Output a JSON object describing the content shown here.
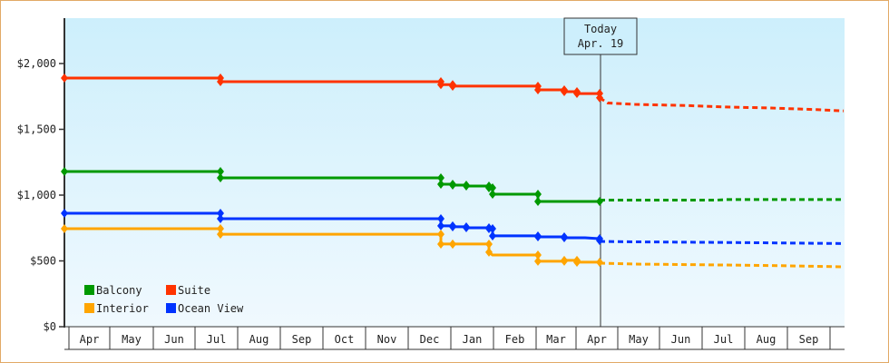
{
  "chart_data": {
    "type": "line",
    "title": "",
    "xlabel": "",
    "ylabel": "",
    "ylim": [
      0,
      2350
    ],
    "y_ticks": [
      {
        "label": "$0",
        "value": 0
      },
      {
        "label": "$500",
        "value": 500
      },
      {
        "label": "$1,000",
        "value": 1000
      },
      {
        "label": "$1,500",
        "value": 1500
      },
      {
        "label": "$2,000",
        "value": 2000
      }
    ],
    "x_categories": [
      "Apr",
      "May",
      "Jun",
      "Jul",
      "Aug",
      "Sep",
      "Oct",
      "Nov",
      "Dec",
      "Jan",
      "Feb",
      "Mar",
      "Apr",
      "May",
      "Jun",
      "Jul",
      "Aug",
      "Sep"
    ],
    "today_marker": {
      "line1": "Today",
      "line2": "Apr. 19"
    },
    "legend": [
      {
        "name": "Balcony",
        "color": "#009900"
      },
      {
        "name": "Suite",
        "color": "#ff3300"
      },
      {
        "name": "Interior",
        "color": "#ffa500"
      },
      {
        "name": "Ocean View",
        "color": "#0033ff"
      }
    ],
    "series": [
      {
        "name": "Suite",
        "color": "#ff3300",
        "history": [
          [
            71,
            1890
          ],
          [
            243,
            1890
          ],
          [
            243,
            1862
          ],
          [
            486,
            1862
          ],
          [
            486,
            1840
          ],
          [
            499,
            1840
          ],
          [
            499,
            1828
          ],
          [
            593,
            1828
          ],
          [
            593,
            1800
          ],
          [
            622,
            1800
          ],
          [
            622,
            1786
          ],
          [
            636,
            1786
          ],
          [
            636,
            1772
          ],
          [
            661,
            1772
          ],
          [
            661,
            1740
          ]
        ],
        "forecast": [
          [
            661,
            1740
          ],
          [
            670,
            1700
          ],
          [
            700,
            1690
          ],
          [
            760,
            1680
          ],
          [
            800,
            1670
          ],
          [
            850,
            1662
          ],
          [
            900,
            1650
          ],
          [
            930,
            1640
          ]
        ]
      },
      {
        "name": "Balcony",
        "color": "#009900",
        "history": [
          [
            71,
            1179
          ],
          [
            243,
            1179
          ],
          [
            243,
            1131
          ],
          [
            486,
            1131
          ],
          [
            486,
            1083
          ],
          [
            499,
            1083
          ],
          [
            499,
            1076
          ],
          [
            514,
            1076
          ],
          [
            514,
            1069
          ],
          [
            539,
            1069
          ],
          [
            539,
            1055
          ],
          [
            543,
            1055
          ],
          [
            543,
            1007
          ],
          [
            593,
            1007
          ],
          [
            593,
            952
          ],
          [
            636,
            952
          ],
          [
            645,
            952
          ],
          [
            661,
            952
          ]
        ],
        "forecast": [
          [
            661,
            962
          ],
          [
            790,
            962
          ],
          [
            800,
            966
          ],
          [
            930,
            966
          ]
        ]
      },
      {
        "name": "Ocean View",
        "color": "#0033ff",
        "history": [
          [
            71,
            862
          ],
          [
            243,
            862
          ],
          [
            243,
            821
          ],
          [
            486,
            821
          ],
          [
            486,
            766
          ],
          [
            499,
            766
          ],
          [
            499,
            759
          ],
          [
            514,
            759
          ],
          [
            514,
            752
          ],
          [
            539,
            752
          ],
          [
            539,
            745
          ],
          [
            543,
            745
          ],
          [
            543,
            690
          ],
          [
            593,
            690
          ],
          [
            593,
            683
          ],
          [
            622,
            683
          ],
          [
            622,
            676
          ],
          [
            636,
            676
          ],
          [
            645,
            676
          ],
          [
            661,
            669
          ],
          [
            661,
            655
          ]
        ],
        "forecast": [
          [
            661,
            648
          ],
          [
            700,
            645
          ],
          [
            790,
            641
          ],
          [
            880,
            635
          ],
          [
            930,
            632
          ]
        ]
      },
      {
        "name": "Interior",
        "color": "#ffa500",
        "history": [
          [
            71,
            745
          ],
          [
            243,
            745
          ],
          [
            243,
            703
          ],
          [
            486,
            703
          ],
          [
            486,
            628
          ],
          [
            499,
            628
          ],
          [
            499,
            628
          ],
          [
            514,
            628
          ],
          [
            539,
            628
          ],
          [
            539,
            566
          ],
          [
            543,
            545
          ],
          [
            593,
            545
          ],
          [
            593,
            497
          ],
          [
            622,
            497
          ],
          [
            622,
            504
          ],
          [
            636,
            504
          ],
          [
            636,
            490
          ],
          [
            661,
            490
          ]
        ],
        "forecast": [
          [
            661,
            483
          ],
          [
            700,
            476
          ],
          [
            760,
            472
          ],
          [
            850,
            465
          ],
          [
            930,
            455
          ]
        ]
      }
    ]
  }
}
